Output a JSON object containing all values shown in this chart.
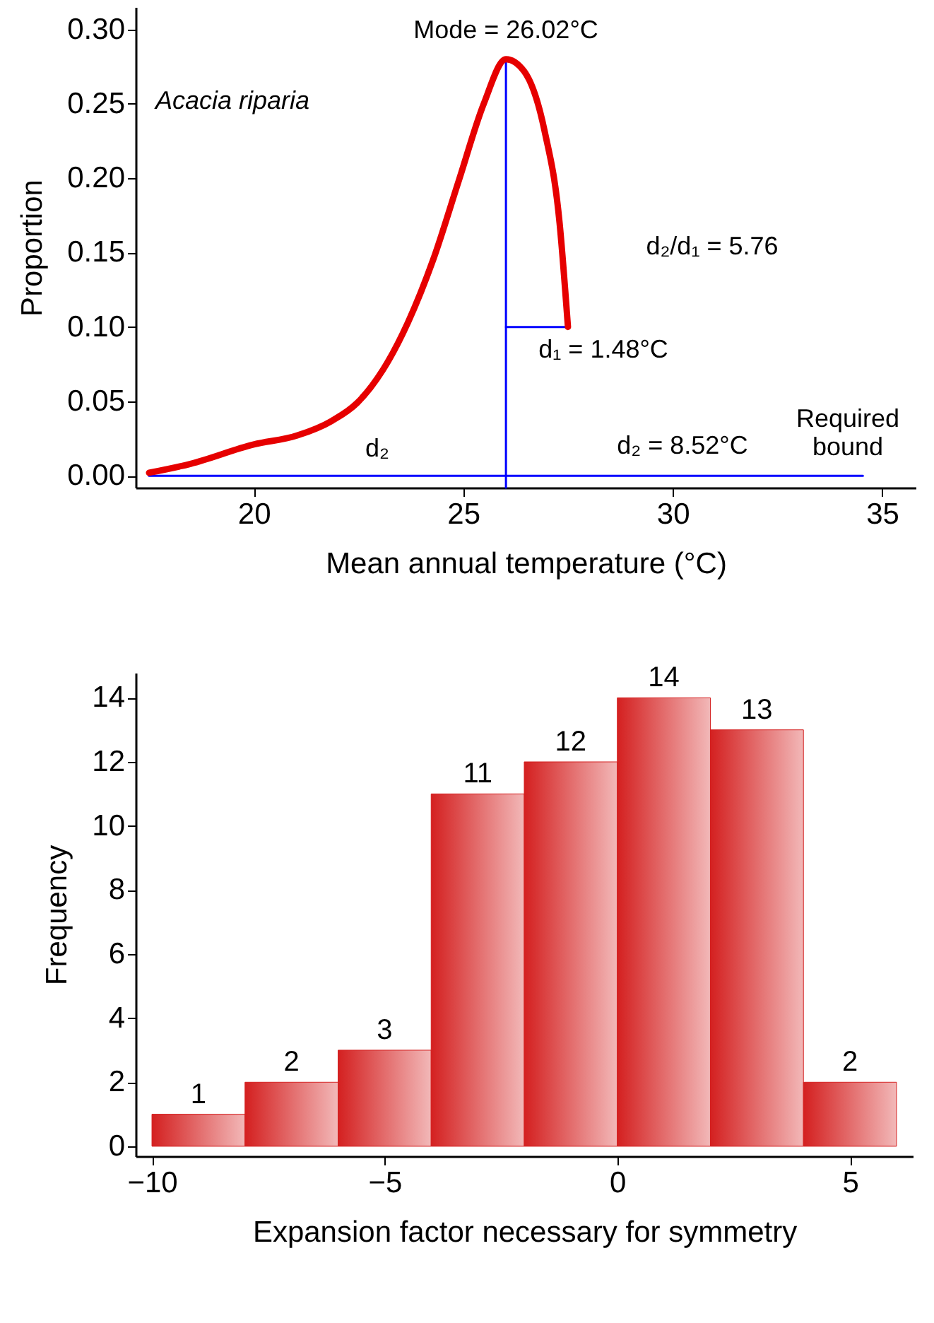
{
  "chart_data": [
    {
      "type": "line",
      "xlabel": "Mean annual temperature (°C)",
      "ylabel": "Proportion",
      "xlim": [
        17.18,
        35.8
      ],
      "ylim": [
        -0.008,
        0.315
      ],
      "xticks": [
        20,
        25,
        30,
        35
      ],
      "yticks": [
        {
          "value": 0,
          "label": "0.00"
        },
        0.05,
        {
          "value": 0.1,
          "label": "0.10"
        },
        0.15,
        {
          "value": 0.2,
          "label": "0.20"
        },
        0.25,
        {
          "value": 0.3,
          "label": "0.30"
        }
      ],
      "grid": false,
      "series": [
        {
          "color": "#0000ff",
          "x": [
            17.5,
            34.54
          ],
          "values": [
            0,
            0
          ]
        },
        {
          "color": "#0000ff",
          "x": [
            26.02,
            26.02
          ],
          "values": [
            -0.008,
            0.28
          ]
        },
        {
          "color": "#0000ff",
          "x": [
            26.02,
            27.5
          ],
          "values": [
            0.1,
            0.1
          ]
        },
        {
          "color": "#e60000",
          "x": [
            17.5,
            18.49,
            20,
            21.03,
            21.87,
            22.47,
            23.08,
            23.68,
            24.28,
            24.89,
            25.49,
            26.02,
            26.45,
            26.94,
            27.3,
            27.5
          ],
          "values": [
            0.002,
            0.008,
            0.021,
            0.027,
            0.037,
            0.049,
            0.071,
            0.103,
            0.145,
            0.198,
            0.25,
            0.28,
            0.272,
            0.232,
            0.17,
            0.1
          ]
        }
      ],
      "annotations": [
        "Mode = 26.02°C",
        "Acacia riparia",
        "d₂/d₁ = 5.76",
        "d₁ = 1.48°C",
        "d₂",
        "d₂ = 8.52°C",
        "Required\nbound"
      ]
    },
    {
      "type": "histogram",
      "xlabel": "Expansion factor necessary for symmetry",
      "ylabel": "Frequency",
      "bins": [
        -10,
        -8,
        -6,
        -4,
        -2,
        0,
        2,
        4,
        6
      ],
      "values": [
        1,
        2,
        3,
        11,
        12,
        14,
        13,
        2
      ],
      "color": "#d42020",
      "data_labels": true,
      "xlim": [
        -10.35,
        6.35
      ],
      "ylim": [
        -0.31,
        14.78
      ],
      "xticks": [
        {
          "value": -10,
          "label": "−10"
        },
        {
          "value": -5,
          "label": "−5"
        },
        0,
        5
      ],
      "yticks": [
        0,
        2,
        4,
        6,
        8,
        10,
        12,
        14
      ],
      "grid": false
    }
  ]
}
